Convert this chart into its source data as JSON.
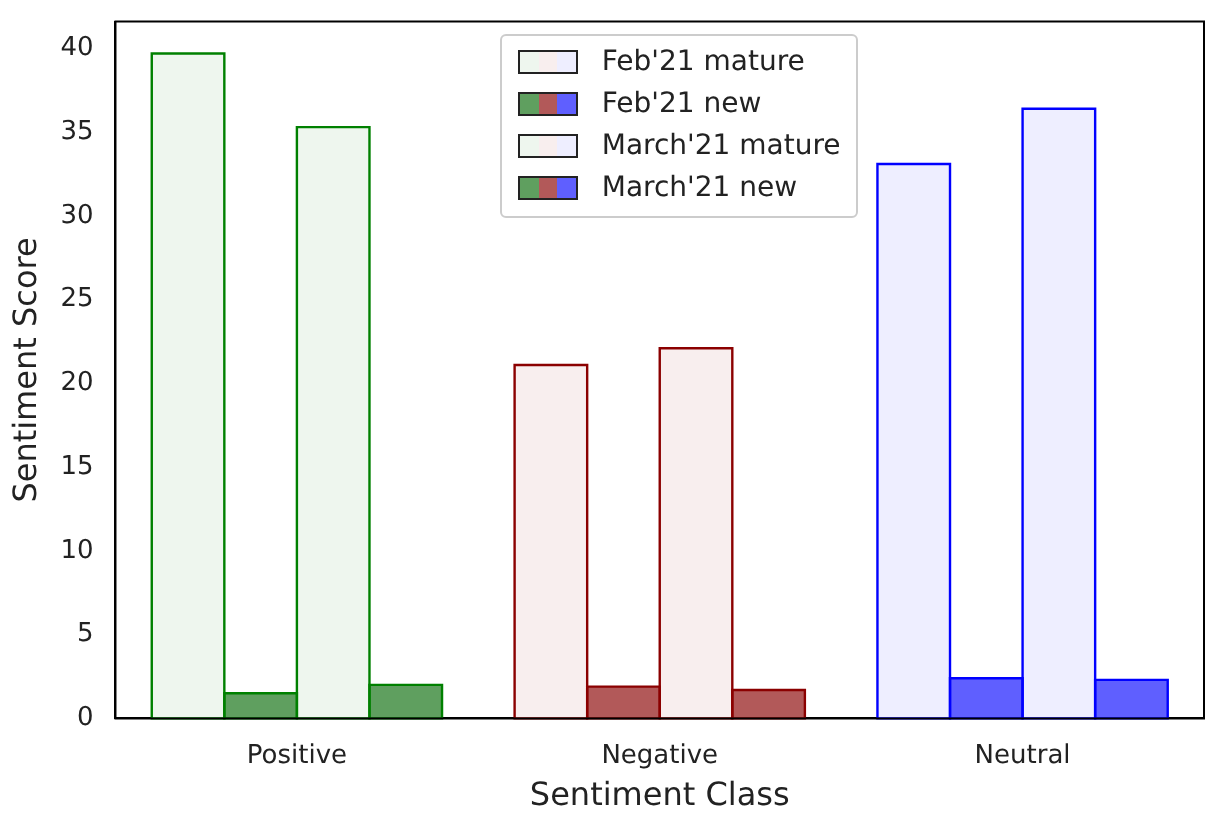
{
  "chart_data": {
    "type": "bar",
    "xlabel": "Sentiment Class",
    "ylabel": "Sentiment Score",
    "categories": [
      "Positive",
      "Negative",
      "Neutral"
    ],
    "series": [
      {
        "name": "Feb'21 mature",
        "colors": [
          "#eef6ee",
          "#f8eeee",
          "#eeeeff"
        ],
        "values": [
          39.7,
          21.1,
          33.1
        ]
      },
      {
        "name": "Feb'21 new",
        "colors": [
          "#5f9f5f",
          "#b25959",
          "#5f5fff"
        ],
        "values": [
          1.5,
          1.9,
          2.4
        ]
      },
      {
        "name": "March'21 mature",
        "colors": [
          "#eef6ee",
          "#f8eeee",
          "#eeeeff"
        ],
        "values": [
          35.3,
          22.1,
          36.4
        ]
      },
      {
        "name": "March'21 new",
        "colors": [
          "#5f9f5f",
          "#b25959",
          "#5f5fff"
        ],
        "values": [
          2.0,
          1.7,
          2.3
        ]
      }
    ],
    "ylim": [
      0,
      41.6
    ],
    "yticks": [
      0,
      5,
      10,
      15,
      20,
      25,
      30,
      35,
      40
    ],
    "grid": false,
    "legend": "top"
  }
}
